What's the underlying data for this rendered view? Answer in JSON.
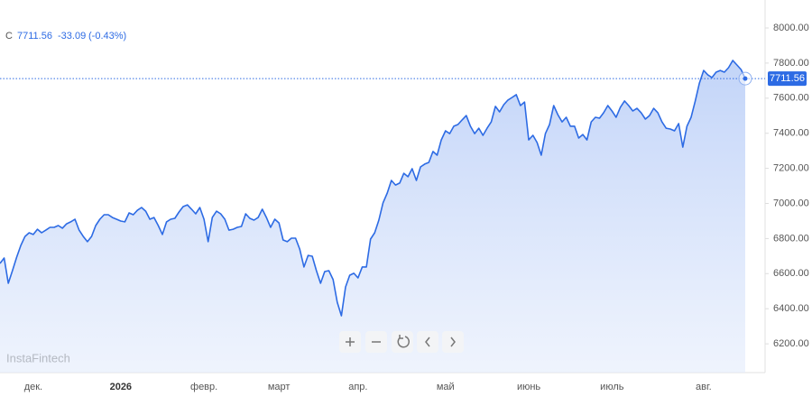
{
  "chart_data": {
    "type": "area",
    "symbol": "C",
    "change": -33.09,
    "change_label": "(-0.43%)",
    "watermark": "InstaFintech",
    "color": "#2d6be4",
    "values": [
      6658,
      6689,
      6545,
      6617,
      6694,
      6761,
      6812,
      6833,
      6823,
      6853,
      6833,
      6848,
      6864,
      6864,
      6874,
      6859,
      6884,
      6895,
      6910,
      6848,
      6812,
      6782,
      6812,
      6874,
      6910,
      6936,
      6936,
      6920,
      6910,
      6900,
      6895,
      6946,
      6936,
      6961,
      6977,
      6956,
      6910,
      6920,
      6874,
      6823,
      6895,
      6910,
      6915,
      6951,
      6982,
      6992,
      6967,
      6941,
      6977,
      6910,
      6782,
      6920,
      6956,
      6941,
      6910,
      6848,
      6853,
      6864,
      6869,
      6941,
      6915,
      6905,
      6920,
      6967,
      6920,
      6864,
      6910,
      6889,
      6792,
      6782,
      6802,
      6802,
      6740,
      6638,
      6704,
      6699,
      6617,
      6545,
      6612,
      6617,
      6566,
      6437,
      6360,
      6524,
      6591,
      6602,
      6576,
      6638,
      6638,
      6797,
      6833,
      6905,
      7003,
      7059,
      7131,
      7105,
      7116,
      7172,
      7152,
      7198,
      7131,
      7208,
      7224,
      7234,
      7296,
      7275,
      7362,
      7414,
      7398,
      7440,
      7450,
      7476,
      7501,
      7440,
      7398,
      7429,
      7388,
      7429,
      7465,
      7553,
      7522,
      7563,
      7589,
      7604,
      7620,
      7558,
      7578,
      7362,
      7388,
      7347,
      7275,
      7398,
      7450,
      7558,
      7506,
      7465,
      7491,
      7440,
      7440,
      7373,
      7393,
      7362,
      7465,
      7491,
      7486,
      7517,
      7558,
      7527,
      7491,
      7548,
      7584,
      7558,
      7527,
      7542,
      7517,
      7481,
      7501,
      7542,
      7517,
      7465,
      7429,
      7424,
      7414,
      7455,
      7321,
      7440,
      7491,
      7584,
      7686,
      7758,
      7733,
      7717,
      7748,
      7758,
      7748,
      7774,
      7815,
      7789,
      7763,
      7711.56
    ],
    "categories": [
      null,
      null,
      null,
      null,
      null,
      null,
      null,
      null,
      "дек.",
      null,
      null,
      null,
      null,
      null,
      null,
      null,
      null,
      null,
      null,
      null,
      null,
      null,
      null,
      null,
      null,
      null,
      null,
      null,
      null,
      "2026",
      null,
      null,
      null,
      null,
      null,
      null,
      null,
      null,
      null,
      null,
      null,
      null,
      null,
      null,
      null,
      null,
      null,
      null,
      null,
      "февр.",
      null,
      null,
      null,
      null,
      null,
      null,
      null,
      null,
      null,
      null,
      null,
      null,
      null,
      null,
      null,
      null,
      null,
      "март",
      null,
      null,
      null,
      null,
      null,
      null,
      null,
      null,
      null,
      null,
      null,
      null,
      null,
      null,
      null,
      null,
      null,
      null,
      "апр.",
      null,
      null,
      null,
      null,
      null,
      null,
      null,
      null,
      null,
      null,
      null,
      null,
      null,
      null,
      null,
      null,
      null,
      null,
      null,
      null,
      "май",
      null,
      null,
      null,
      null,
      null,
      null,
      null,
      null,
      null,
      null,
      null,
      null,
      null,
      null,
      null,
      null,
      null,
      null,
      null,
      "июнь",
      null,
      null,
      null,
      null,
      null,
      null,
      null,
      null,
      null,
      null,
      null,
      null,
      null,
      null,
      null,
      null,
      null,
      null,
      null,
      "июль",
      null,
      null,
      null,
      null,
      null,
      null,
      null,
      null,
      null,
      null,
      null,
      null,
      null,
      null,
      null,
      null,
      null,
      null,
      null,
      null,
      null,
      "авг.",
      null,
      null,
      null,
      null,
      null,
      null,
      null,
      null,
      null,
      null
    ],
    "ylim": [
      6036,
      8108
    ],
    "yticks": [
      {
        "value": 6200,
        "label": "6200.00"
      },
      {
        "value": 6400,
        "label": "6400.00"
      },
      {
        "value": 6600,
        "label": "6600.00"
      },
      {
        "value": 6800,
        "label": "6800.00"
      },
      {
        "value": 7000,
        "label": "7000.00"
      },
      {
        "value": 7200,
        "label": "7200.00"
      },
      {
        "value": 7400,
        "label": "7400.00"
      },
      {
        "value": 7600,
        "label": "7600.00"
      },
      {
        "value": 7800,
        "label": "7800.00"
      },
      {
        "value": 8000,
        "label": "8000.00"
      }
    ]
  }
}
